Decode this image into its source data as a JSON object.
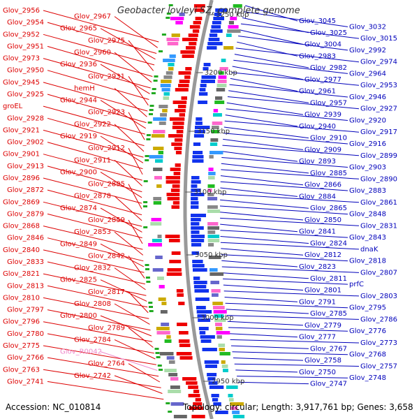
{
  "title": "Geobacter lovleyi SZ, complete genome",
  "footer": {
    "accession": "Accession: NC_010814",
    "summary": "Topology: circular; Length: 3,917,761 bp; Genes: 3,658"
  },
  "colors": {
    "left_label": "#dd0000",
    "right_label": "#0000bb",
    "rna_label": "#ee88cc",
    "backbone": "#999999"
  },
  "kbp_ticks": [
    "3250 kbp",
    "3200 kbp",
    "3150 kbp",
    "3100 kbp",
    "3050 kbp",
    "3000 kbp",
    "2950 kbp"
  ],
  "left_labels": [
    "Glov_2956",
    "Glov_2967",
    "Glov_2954",
    "Glov_2965",
    "Glov_2952",
    "Glov_2975",
    "Glov_2951",
    "Glov_2960",
    "Glov_2973",
    "Glov_2936",
    "Glov_2950",
    "Glov_2931",
    "Glov_2945",
    "hemH",
    "Glov_2925",
    "Glov_2944",
    "groEL",
    "Glov_2923",
    "Glov_2928",
    "Glov_2922",
    "Glov_2921",
    "Glov_2919",
    "Glov_2902",
    "Glov_2912",
    "Glov_2901",
    "Glov_2911",
    "Glov_2913",
    "Glov_2900",
    "Glov_2896",
    "Glov_2895",
    "Glov_2872",
    "Glov_2878",
    "Glov_2869",
    "Glov_2874",
    "Glov_2879",
    "Glov_2859",
    "Glov_2868",
    "Glov_2853",
    "Glov_2846",
    "Glov_2849",
    "Glov_2840",
    "Glov_2842",
    "Glov_2833",
    "Glov_2832",
    "Glov_2821",
    "Glov_2825",
    "Glov_2813",
    "Glov_2817",
    "Glov_2810",
    "Glov_2808",
    "Glov_2797",
    "Glov_2800",
    "Glov_2796",
    "Glov_2789",
    "Glov_2780",
    "Glov_2784",
    "Glov_2775",
    "Glov_R0042",
    "Glov_2766",
    "Glov_2764",
    "Glov_2763",
    "Glov_2742",
    "Glov_2741"
  ],
  "right_labels": [
    "Glov_3045",
    "Glov_3032",
    "Glov_3025",
    "Glov_3015",
    "Glov_3004",
    "Glov_2992",
    "Glov_2983",
    "Glov_2974",
    "Glov_2982",
    "Glov_2964",
    "Glov_2977",
    "Glov_2953",
    "Glov_2961",
    "Glov_2946",
    "Glov_2957",
    "Glov_2927",
    "Glov_2939",
    "Glov_2920",
    "Glov_2940",
    "Glov_2917",
    "Glov_2910",
    "Glov_2916",
    "Glov_2909",
    "Glov_2899",
    "Glov_2893",
    "Glov_2903",
    "Glov_2885",
    "Glov_2890",
    "Glov_2866",
    "Glov_2883",
    "Glov_2884",
    "Glov_2861",
    "Glov_2865",
    "Glov_2848",
    "Glov_2850",
    "Glov_2831",
    "Glov_2841",
    "Glov_2843",
    "Glov_2824",
    "dnaK",
    "Glov_2812",
    "Glov_2818",
    "Glov_2823",
    "Glov_2807",
    "Glov_2811",
    "prfC",
    "Glov_2801",
    "Glov_2803",
    "Glov_2791",
    "Glov_2795",
    "Glov_2785",
    "Glov_2786",
    "Glov_2779",
    "Glov_2776",
    "Glov_2777",
    "Glov_2773",
    "Glov_2767",
    "Glov_2768",
    "Glov_2758",
    "Glov_2757",
    "Glov_2750",
    "Glov_2748",
    "Glov_2747"
  ]
}
